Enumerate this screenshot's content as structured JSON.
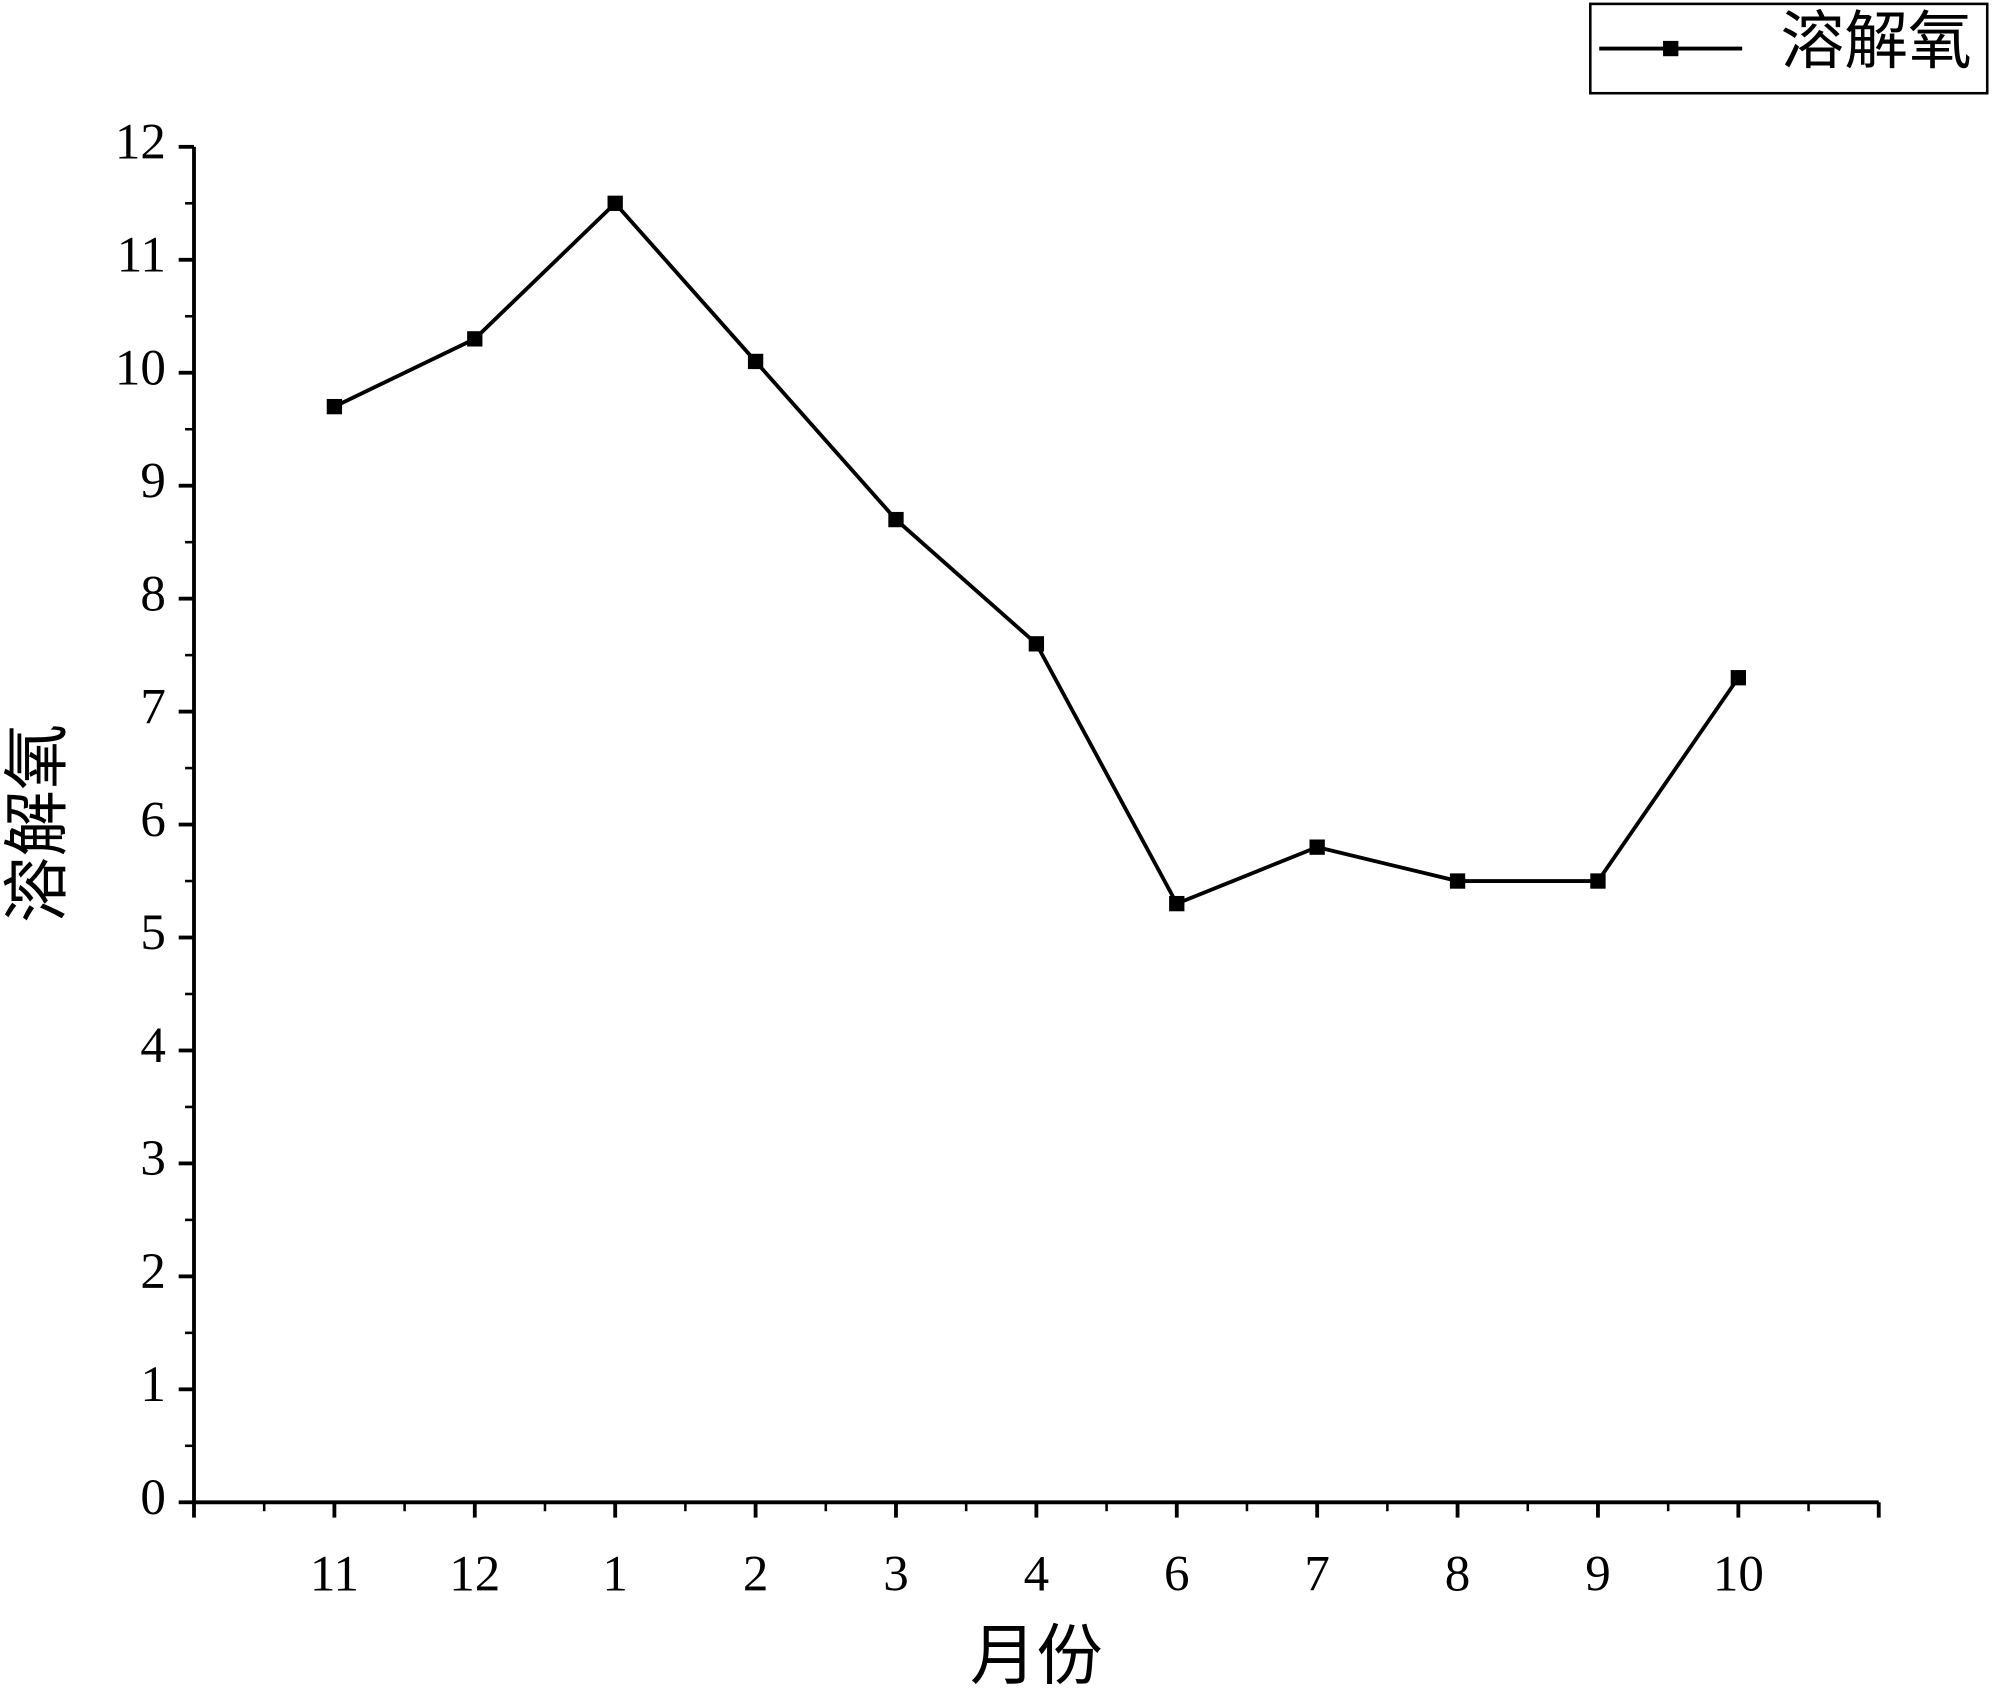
{
  "chart_data": {
    "type": "line",
    "x_label": "月份",
    "y_label": "溶解氧",
    "categories": [
      "11",
      "12",
      "1",
      "2",
      "3",
      "4",
      "6",
      "7",
      "8",
      "9",
      "10"
    ],
    "series": [
      {
        "name": "溶解氧",
        "color": "#000000",
        "values": [
          9.7,
          10.3,
          11.5,
          10.1,
          8.7,
          7.6,
          5.3,
          5.8,
          5.5,
          5.5,
          7.3
        ]
      }
    ],
    "ylim": [
      0,
      12
    ],
    "yticks": [
      0,
      1,
      2,
      3,
      4,
      5,
      6,
      7,
      8,
      9,
      10,
      11,
      12
    ],
    "legend": "upper right"
  }
}
